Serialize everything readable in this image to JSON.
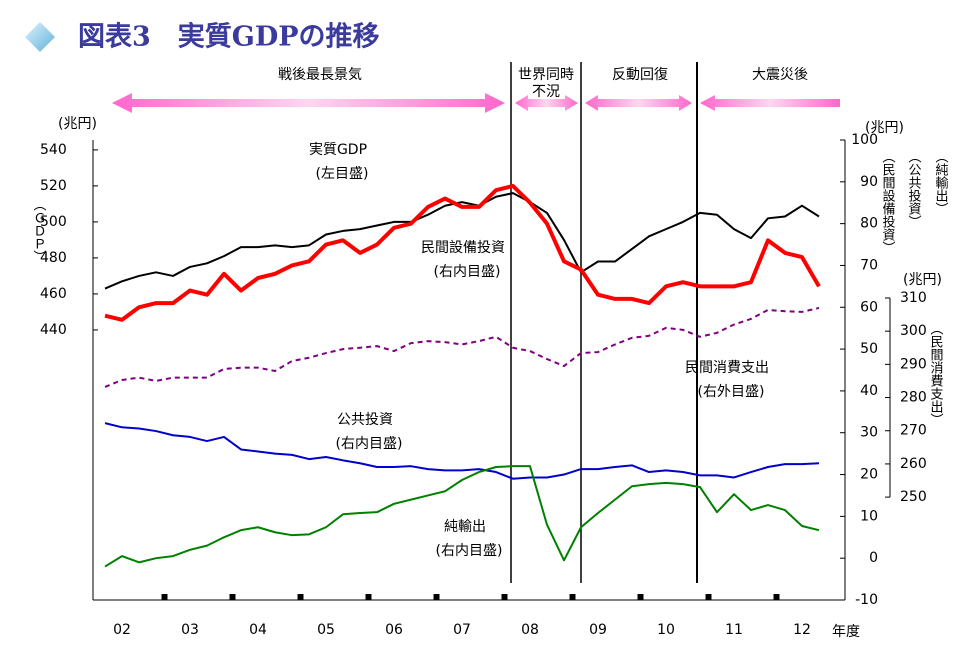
{
  "chart_data": {
    "type": "line",
    "title": "図表3　実質GDPの推移",
    "x_label": "年度",
    "categories": [
      null,
      "02",
      null,
      null,
      null,
      "03",
      null,
      null,
      null,
      "04",
      null,
      null,
      null,
      "05",
      null,
      null,
      null,
      "06",
      null,
      null,
      null,
      "07",
      null,
      null,
      null,
      "08",
      null,
      null,
      null,
      "09",
      null,
      null,
      null,
      "10",
      null,
      null,
      null,
      "11",
      null,
      null,
      null,
      "12",
      null
    ],
    "periods": [
      {
        "lines": [
          "戦後最長景気"
        ]
      },
      {
        "lines": [
          "世界同時",
          "不況"
        ]
      },
      {
        "lines": [
          "反動回復"
        ]
      },
      {
        "lines": [
          "大震災後"
        ]
      }
    ],
    "y_unit": "(兆円)",
    "y_title": "（ＧＤＰ）",
    "ylim": [
      290,
      545.5
    ],
    "yticks": [
      440,
      460,
      480,
      500,
      520,
      540
    ],
    "y2_unit": "(兆円)",
    "y2lim": [
      -10,
      100
    ],
    "y2ticks": [
      -10,
      0,
      10,
      20,
      30,
      40,
      50,
      60,
      70,
      80,
      90,
      100
    ],
    "y3_unit": "(兆円)",
    "y3lim": [
      219,
      357.6
    ],
    "y3ticks": [
      250,
      260,
      270,
      280,
      290,
      300,
      310
    ],
    "series": [
      {
        "name": "実質GDP",
        "note": "(左目盛)",
        "axis": "y",
        "color": "#000000",
        "width": 2,
        "line_style": "solid",
        "values": [
          463,
          467,
          470,
          472,
          470,
          475,
          477,
          481,
          486,
          486,
          487,
          486,
          487,
          493,
          495,
          496,
          498,
          500,
          500,
          504,
          509,
          511,
          509,
          514,
          516,
          511,
          505,
          490,
          472,
          478,
          478,
          485,
          492,
          496,
          500,
          505,
          504,
          496,
          491,
          502,
          503,
          509,
          503
        ]
      },
      {
        "name": "民間設備投資",
        "note": "(右内目盛)",
        "axis": "y2",
        "axis_title": "（民間設備投資）",
        "color": "#ff0000",
        "width": 4,
        "line_style": "solid",
        "values": [
          58,
          57,
          60,
          61,
          61,
          64,
          63,
          68,
          64,
          67,
          68,
          70,
          71,
          75,
          76,
          73,
          75,
          79,
          80,
          84,
          86,
          84,
          84,
          88,
          89,
          85,
          80,
          71,
          69,
          63,
          62,
          62,
          61,
          65,
          66,
          65,
          65,
          65,
          66,
          76,
          73,
          72,
          65
        ]
      },
      {
        "name": "民間消費支出",
        "note": "(右外目盛)",
        "axis": "y3",
        "axis_title": "（民間消費支出）",
        "color": "#800080",
        "width": 2,
        "line_style": "dashed",
        "values": [
          283.2,
          285.3,
          286,
          285,
          286,
          286,
          286,
          288.6,
          289,
          289,
          288,
          291,
          292,
          293.4,
          294.6,
          295,
          295.5,
          294,
          296.4,
          297,
          296.7,
          296,
          297,
          298.3,
          295,
          294,
          291.6,
          289.5,
          293.4,
          293.7,
          296,
          298,
          298.6,
          301,
          300.4,
          298.3,
          299.5,
          302,
          303.7,
          306.4,
          306,
          305.8,
          307
        ]
      },
      {
        "name": "公共投資",
        "note": "(右内目盛)",
        "axis": "y2",
        "axis_title": "（公共投資）",
        "color": "#0000cc",
        "width": 2,
        "line_style": "solid",
        "values": [
          32.3,
          31.3,
          31,
          30.4,
          29.4,
          29,
          28,
          29,
          26,
          25.5,
          25,
          24.7,
          23.7,
          24.2,
          23.4,
          22.7,
          21.8,
          21.8,
          22,
          21.3,
          21,
          21,
          21.3,
          20.6,
          19,
          19.3,
          19.3,
          20,
          21.3,
          21.3,
          21.8,
          22.2,
          20.6,
          21,
          20.6,
          19.8,
          19.8,
          19.3,
          20.6,
          21.8,
          22.5,
          22.5,
          22.7
        ]
      },
      {
        "name": "純輸出",
        "note": "(右内目盛)",
        "axis": "y2",
        "axis_title": "（純輸出）",
        "color": "#008000",
        "width": 2,
        "line_style": "solid",
        "values": [
          -2,
          0.5,
          -1,
          0,
          0.5,
          2,
          3,
          5,
          6.7,
          7.4,
          6.2,
          5.5,
          5.7,
          7.4,
          10.5,
          10.8,
          11,
          13,
          14,
          15,
          16,
          18.7,
          20.6,
          21.8,
          22,
          22,
          8,
          -0.5,
          7.4,
          10.8,
          14,
          17.2,
          17.7,
          18,
          17.7,
          17,
          11,
          15.3,
          11.5,
          12.7,
          11.5,
          7.7,
          6.7
        ]
      }
    ]
  }
}
